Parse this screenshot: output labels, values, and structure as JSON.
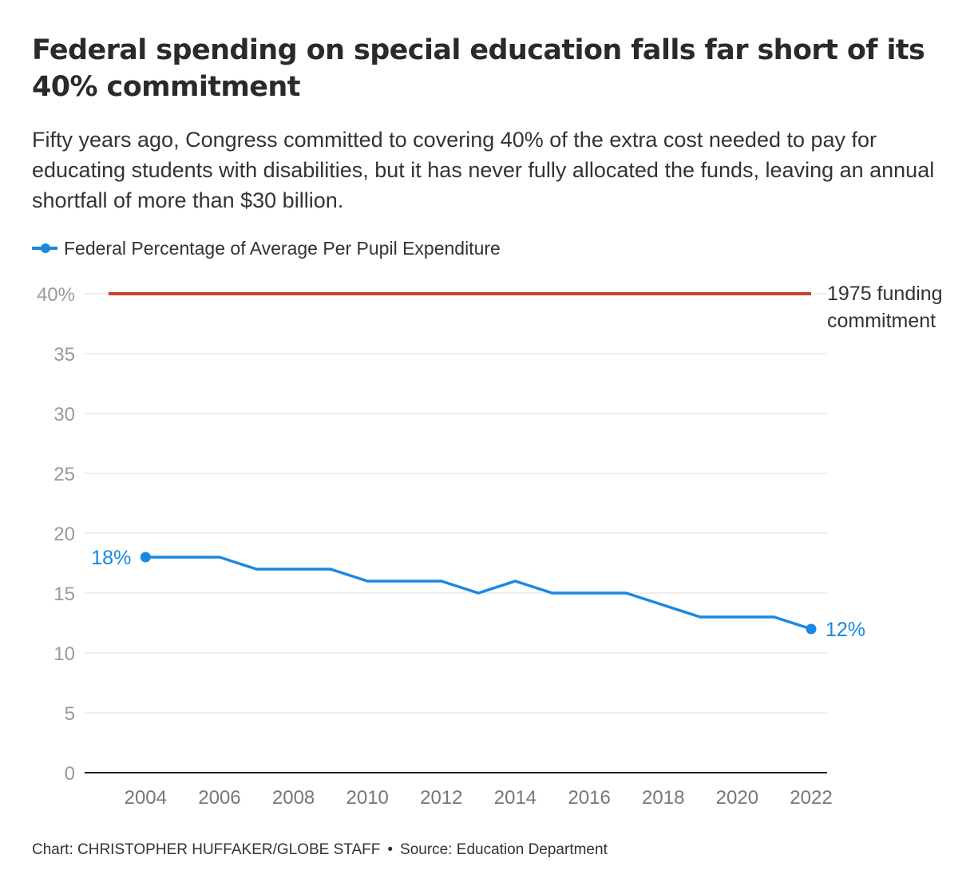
{
  "header": {
    "title": "Federal spending on special education falls far short of its 40% commitment",
    "subtitle": "Fifty years ago, Congress committed to covering 40% of the extra cost needed to pay for educating students with disabilities, but it has never fully allocated the funds, leaving an annual shortfall of more than $30 billion."
  },
  "legend": {
    "series_label": "Federal Percentage of Average Per Pupil Expenditure",
    "icon": "line-with-dot-icon"
  },
  "colors": {
    "series": "#1a88e0",
    "commitment": "#c8432f",
    "grid": "#dddddd",
    "axis": "#222222",
    "tick_text": "#9a9a9a"
  },
  "chart_data": {
    "type": "line",
    "xlim": [
      2003,
      2022
    ],
    "ylim": [
      0,
      40
    ],
    "x_ticks": [
      2004,
      2006,
      2008,
      2010,
      2012,
      2014,
      2016,
      2018,
      2020,
      2022
    ],
    "y_ticks": [
      0,
      5,
      10,
      15,
      20,
      25,
      30,
      35,
      40
    ],
    "y_tick_labels": [
      "0",
      "5",
      "10",
      "15",
      "20",
      "25",
      "30",
      "35",
      "40%"
    ],
    "grid": true,
    "series": [
      {
        "name": "Federal Percentage of Average Per Pupil Expenditure",
        "x": [
          2004,
          2005,
          2006,
          2007,
          2008,
          2009,
          2010,
          2011,
          2012,
          2013,
          2014,
          2015,
          2016,
          2017,
          2018,
          2019,
          2020,
          2021,
          2022
        ],
        "y": [
          18,
          18,
          18,
          17,
          17,
          17,
          16,
          16,
          16,
          15,
          16,
          15,
          15,
          15,
          14,
          13,
          13,
          13,
          12
        ]
      }
    ],
    "reference_line": {
      "y": 40,
      "x": [
        2003,
        2022
      ],
      "label_lines": [
        "1975 funding",
        "commitment"
      ]
    },
    "annotations": [
      {
        "x": 2004,
        "y": 18,
        "text": "18%",
        "position": "left"
      },
      {
        "x": 2022,
        "y": 12,
        "text": "12%",
        "position": "right"
      }
    ]
  },
  "footer": {
    "credit": "Chart: CHRISTOPHER HUFFAKER/GLOBE STAFF",
    "separator": "•",
    "source": "Source: Education Department"
  }
}
